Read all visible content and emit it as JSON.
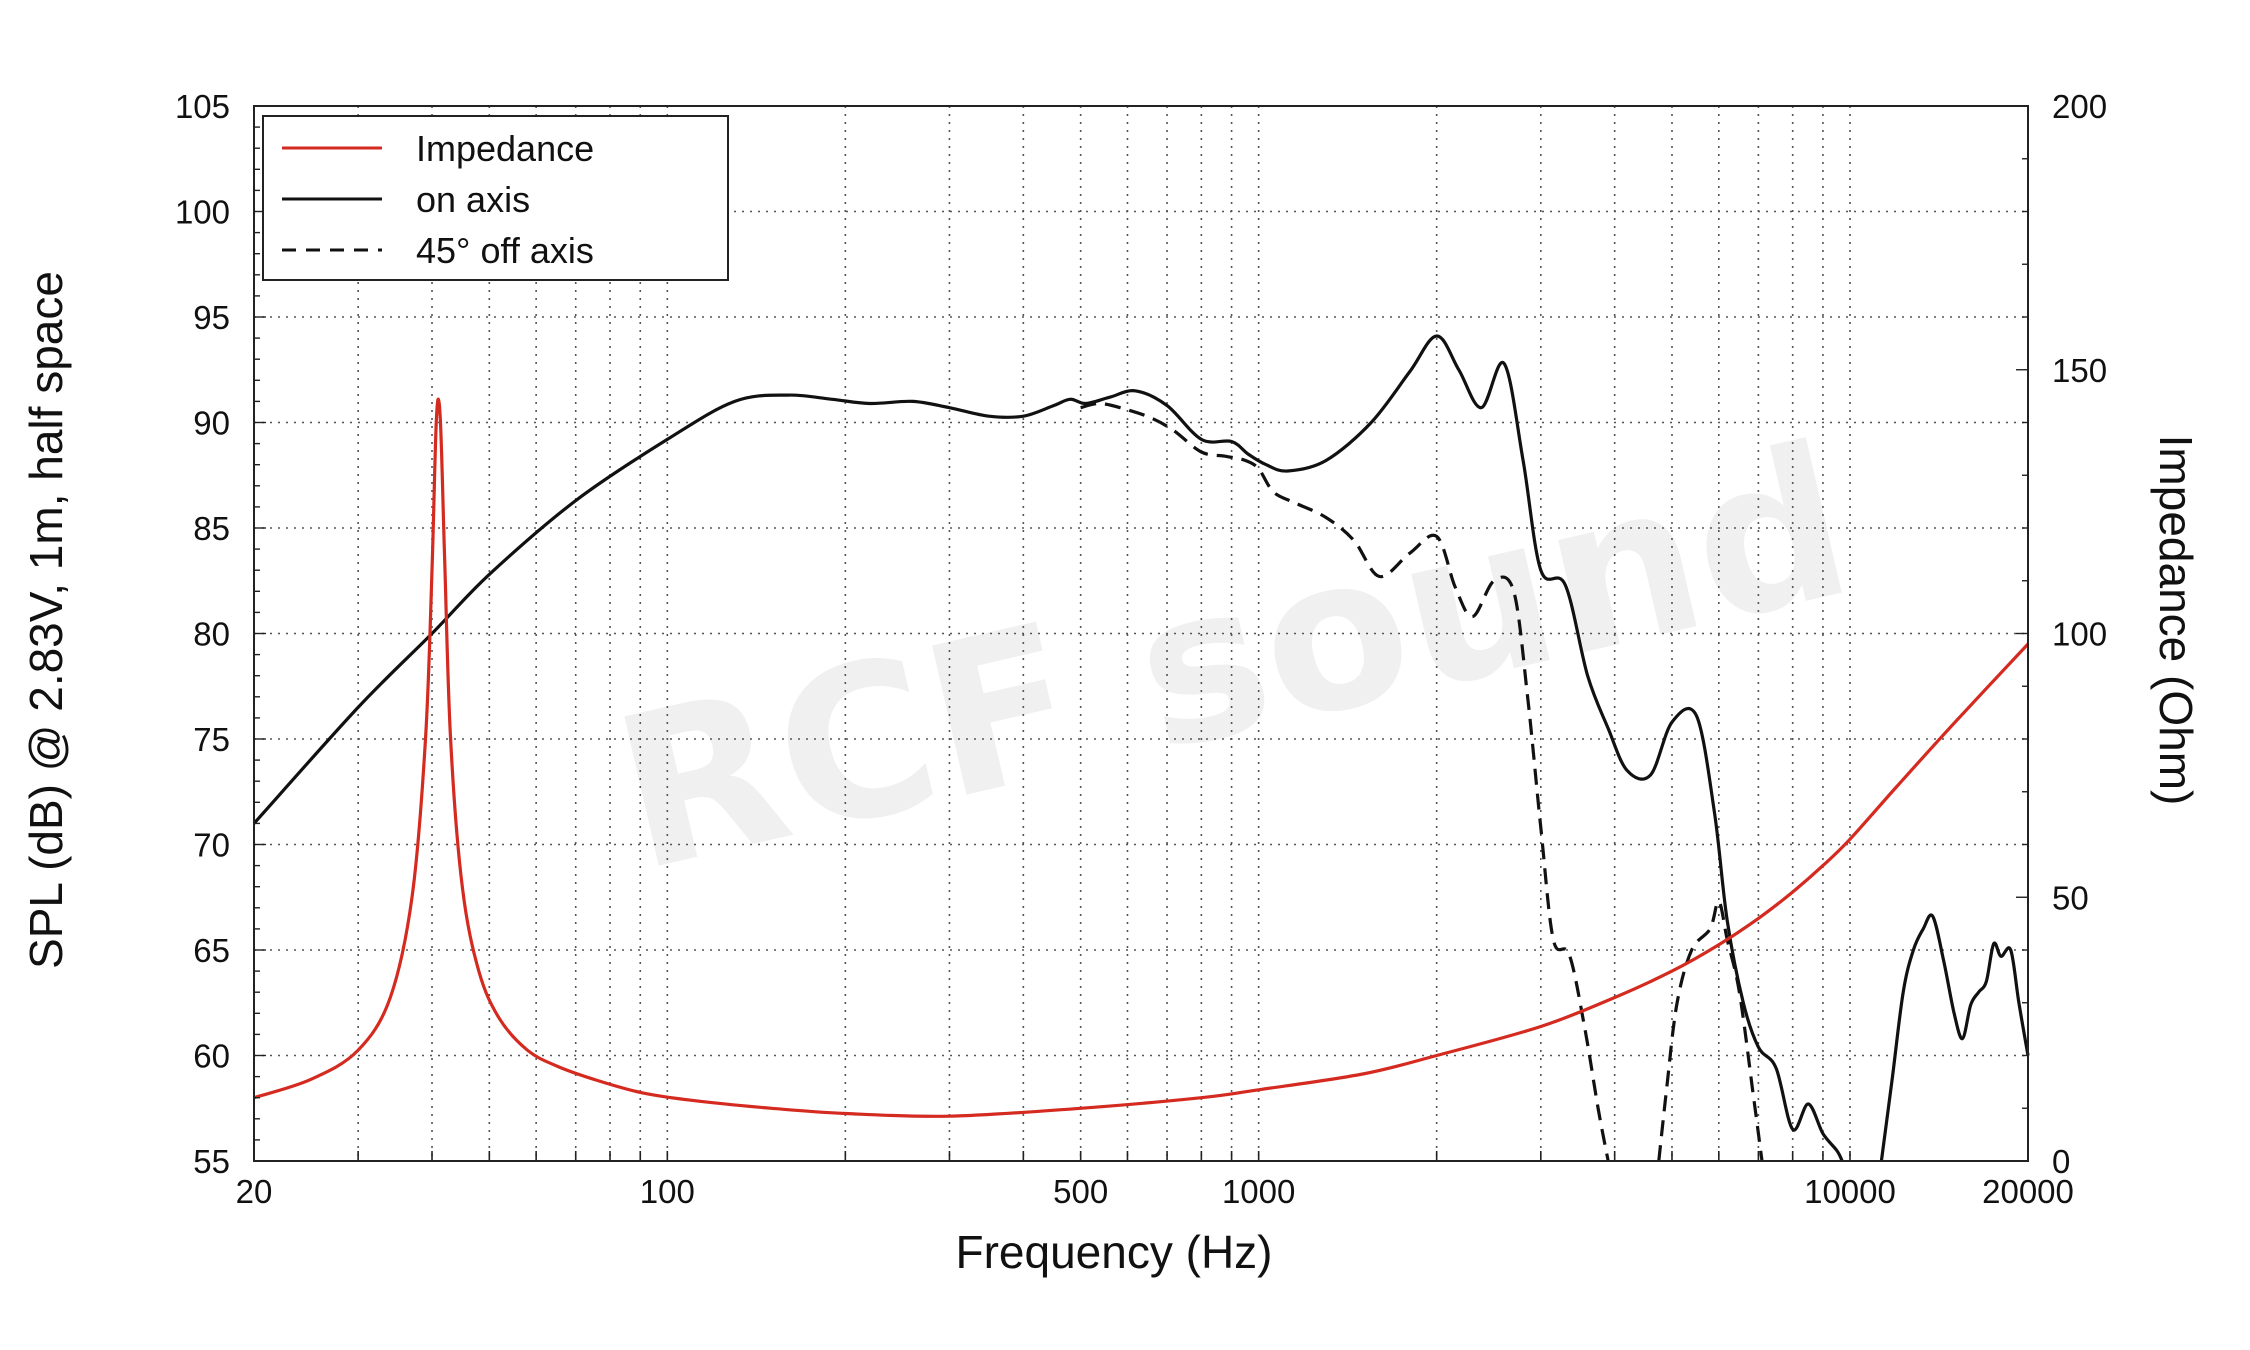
{
  "chart_data": {
    "type": "line",
    "xlabel": "Frequency (Hz)",
    "ylabel_left": "SPL (dB) @ 2.83V, 1m, half space",
    "ylabel_right": "Impedance (Ohm)",
    "x_scale": "log",
    "xlim": [
      20,
      20000
    ],
    "ylim_left": [
      55,
      105
    ],
    "ylim_right": [
      0,
      200
    ],
    "x_ticks": [
      20,
      100,
      500,
      1000,
      10000,
      20000
    ],
    "x_tick_labels": [
      "20",
      "100",
      "500",
      "1000",
      "10000",
      "20000"
    ],
    "y_left_ticks": [
      55,
      60,
      65,
      70,
      75,
      80,
      85,
      90,
      95,
      100,
      105
    ],
    "y_left_tick_labels": [
      "55",
      "60",
      "65",
      "70",
      "75",
      "80",
      "85",
      "90",
      "95",
      "100",
      "105"
    ],
    "y_right_ticks": [
      0,
      50,
      100,
      150,
      200
    ],
    "y_right_tick_labels": [
      "0",
      "50",
      "100",
      "150",
      "200"
    ],
    "grid": true,
    "legend_position": "top-left",
    "watermark": "RCF sound",
    "series": [
      {
        "name": "Impedance",
        "axis": "right",
        "color": "#d42a20",
        "style": "solid",
        "x": [
          20,
          25,
          30,
          34,
          37,
          39,
          40,
          40.7,
          41.3,
          42,
          43,
          45,
          48,
          52,
          58,
          65,
          75,
          90,
          110,
          150,
          200,
          300,
          500,
          800,
          1000,
          1500,
          2000,
          3000,
          4000,
          5000,
          6000,
          7000,
          8000,
          9000,
          10000,
          12000,
          15000,
          20000
        ],
        "values": [
          12,
          15.5,
          21,
          31,
          50,
          80,
          112,
          141,
          141,
          115,
          80,
          52,
          36,
          27,
          21,
          18,
          15.5,
          13,
          11.5,
          10,
          9,
          8.5,
          10,
          12,
          13.5,
          16.5,
          20,
          25.5,
          31,
          36,
          41,
          46,
          51,
          56,
          61,
          71,
          83,
          98
        ]
      },
      {
        "name": "on axis",
        "axis": "left",
        "color": "#111111",
        "style": "solid",
        "x": [
          20,
          30,
          40,
          50,
          70,
          100,
          130,
          160,
          190,
          220,
          260,
          300,
          350,
          400,
          450,
          480,
          510,
          560,
          620,
          700,
          800,
          900,
          960,
          1030,
          1120,
          1300,
          1550,
          1800,
          2000,
          2180,
          2380,
          2600,
          2800,
          3000,
          3300,
          3600,
          3900,
          4200,
          4600,
          5000,
          5500,
          5900,
          6200,
          6600,
          7000,
          7500,
          8000,
          8500,
          9000,
          9500,
          9700
        ],
        "values": [
          71,
          76.5,
          80,
          82.8,
          86.3,
          89.2,
          91,
          91.3,
          91.1,
          90.9,
          91,
          90.7,
          90.3,
          90.3,
          90.8,
          91.1,
          90.9,
          91.2,
          91.5,
          90.8,
          89.2,
          89.1,
          88.5,
          88,
          87.7,
          88.2,
          90,
          92.4,
          94.1,
          92.5,
          90.7,
          92.8,
          88.2,
          83,
          82.3,
          78,
          75.5,
          73.5,
          73.3,
          75.8,
          76.1,
          71.5,
          66.4,
          62.5,
          60.4,
          59.4,
          56.5,
          57.7,
          56.3,
          55.5,
          55
        ]
      },
      {
        "name": "on axis",
        "axis": "left",
        "color": "#111111",
        "style": "solid",
        "x": [
          11300,
          11800,
          12300,
          12800,
          13300,
          13800,
          14400,
          15000,
          15500,
          16000,
          16500,
          17000,
          17500,
          18000,
          18700,
          19300,
          20000
        ],
        "values": [
          55,
          59,
          63,
          65,
          66,
          66.6,
          64.5,
          62,
          60.8,
          62.4,
          63,
          63.5,
          65.3,
          64.7,
          65,
          62.5,
          60
        ]
      },
      {
        "name": "45° off axis",
        "axis": "left",
        "color": "#111111",
        "style": "dashed",
        "x": [
          500,
          540,
          600,
          660,
          720,
          800,
          880,
          950,
          1000,
          1060,
          1150,
          1300,
          1450,
          1600,
          1800,
          2000,
          2150,
          2300,
          2500,
          2700,
          2850,
          3000,
          3150,
          3350,
          3550,
          3750,
          3900
        ],
        "values": [
          90.7,
          90.9,
          90.6,
          90.2,
          89.6,
          88.6,
          88.4,
          88.2,
          87.8,
          86.7,
          86.2,
          85.5,
          84.4,
          82.7,
          83.8,
          84.6,
          82.2,
          80.8,
          82.5,
          82,
          77,
          70.8,
          65.5,
          64.8,
          61.5,
          57.5,
          55
        ]
      },
      {
        "name": "45° off axis",
        "axis": "left",
        "color": "#111111",
        "style": "dashed",
        "x": [
          4750,
          4900,
          5100,
          5400,
          5800,
          6000,
          6200,
          6500,
          6850,
          7100
        ],
        "values": [
          55,
          58.5,
          62.5,
          65,
          66,
          67.3,
          65.5,
          63,
          58.3,
          55
        ]
      }
    ]
  }
}
